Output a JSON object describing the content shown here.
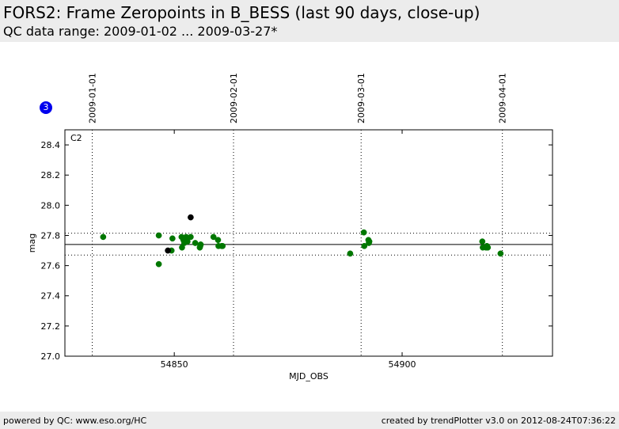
{
  "header": {
    "title": "FORS2: Frame Zeropoints in B_BESS (last 90 days, close-up)",
    "subtitle": "QC data range: 2009-01-02 ... 2009-03-27*"
  },
  "badge": {
    "label": "3",
    "color": "#0000ee"
  },
  "footer": {
    "left": "powered by QC: www.eso.org/HC",
    "right": "created by trendPlotter v3.0 on 2012-08-24T07:36:22"
  },
  "chart_data": {
    "type": "scatter",
    "panel_label": "C2",
    "xlabel": "MJD_OBS",
    "ylabel": "mag",
    "xlim": [
      54826,
      54933
    ],
    "ylim": [
      27.0,
      28.5
    ],
    "x_ticks": [
      54850,
      54900
    ],
    "x_tick_labels": [
      "54850",
      "54900"
    ],
    "y_ticks": [
      27.0,
      27.2,
      27.4,
      27.6,
      27.8,
      28.0,
      28.2,
      28.4
    ],
    "y_tick_labels": [
      "27.0",
      "27.2",
      "27.4",
      "27.6",
      "27.8",
      "28.0",
      "28.2",
      "28.4"
    ],
    "date_markers": [
      {
        "label": "2009-01-01",
        "x": 54832
      },
      {
        "label": "2009-02-01",
        "x": 54863
      },
      {
        "label": "2009-03-01",
        "x": 54891
      },
      {
        "label": "2009-04-01",
        "x": 54922
      }
    ],
    "reference_lines": {
      "mean": 27.74,
      "upper": 27.815,
      "lower": 27.67
    },
    "colors": {
      "good": "#007700",
      "other": "#000000",
      "lines": "#000000"
    },
    "series": [
      {
        "color": "#007700",
        "points": [
          [
            54834.4,
            27.79
          ],
          [
            54846.6,
            27.8
          ],
          [
            54846.6,
            27.61
          ],
          [
            54849.4,
            27.7
          ],
          [
            54849.6,
            27.78
          ],
          [
            54851.6,
            27.79
          ],
          [
            54851.7,
            27.72
          ],
          [
            54852.0,
            27.77
          ],
          [
            54852.2,
            27.75
          ],
          [
            54852.6,
            27.79
          ],
          [
            54852.9,
            27.76
          ],
          [
            54853.6,
            27.79
          ],
          [
            54854.6,
            27.75
          ],
          [
            54855.6,
            27.72
          ],
          [
            54855.7,
            27.73
          ],
          [
            54855.8,
            27.74
          ],
          [
            54858.6,
            27.79
          ],
          [
            54859.6,
            27.77
          ],
          [
            54859.7,
            27.73
          ],
          [
            54860.4,
            27.73
          ],
          [
            54860.6,
            27.73
          ],
          [
            54888.6,
            27.68
          ],
          [
            54891.6,
            27.82
          ],
          [
            54891.7,
            27.73
          ],
          [
            54892.6,
            27.77
          ],
          [
            54892.7,
            27.75
          ],
          [
            54892.8,
            27.76
          ],
          [
            54917.6,
            27.76
          ],
          [
            54917.7,
            27.72
          ],
          [
            54918.4,
            27.72
          ],
          [
            54918.6,
            27.73
          ],
          [
            54918.8,
            27.72
          ],
          [
            54921.6,
            27.68
          ]
        ]
      },
      {
        "color": "#000000",
        "points": [
          [
            54848.6,
            27.7
          ],
          [
            54853.6,
            27.92
          ]
        ]
      }
    ]
  }
}
